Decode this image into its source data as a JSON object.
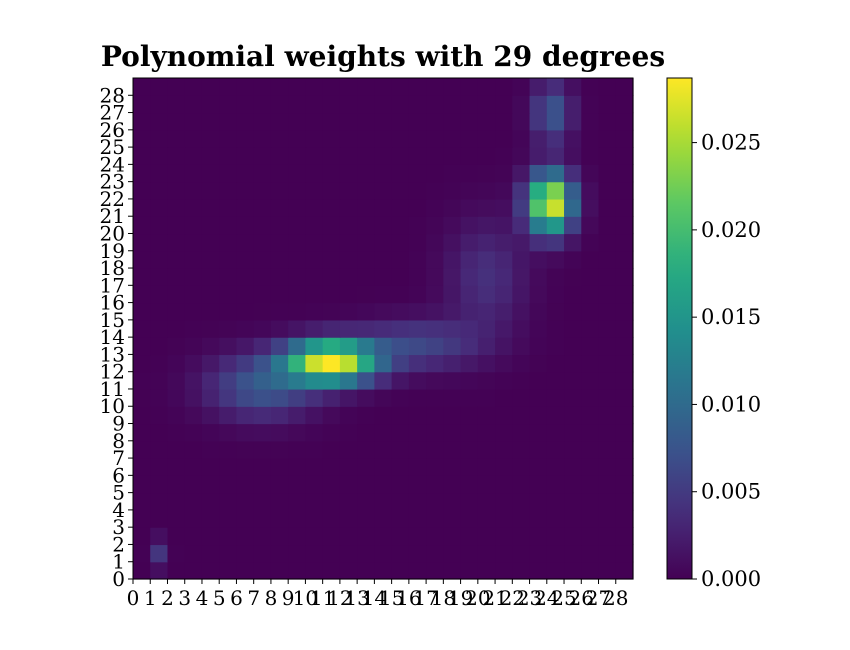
{
  "chart_data": {
    "type": "heatmap",
    "title": "Polynomial weights with 29 degrees",
    "xlabel": "",
    "ylabel": "",
    "x_ticks": [
      "0",
      "1",
      "2",
      "3",
      "4",
      "5",
      "6",
      "7",
      "8",
      "9",
      "10",
      "11",
      "12",
      "13",
      "14",
      "15",
      "16",
      "17",
      "18",
      "19",
      "20",
      "21",
      "22",
      "23",
      "24",
      "25",
      "26",
      "27",
      "28"
    ],
    "y_ticks": [
      "0",
      "1",
      "2",
      "3",
      "4",
      "5",
      "6",
      "7",
      "8",
      "9",
      "10",
      "11",
      "12",
      "13",
      "14",
      "15",
      "16",
      "17",
      "18",
      "19",
      "20",
      "21",
      "22",
      "23",
      "24",
      "25",
      "26",
      "27",
      "28"
    ],
    "colormap": "viridis",
    "vmin": 0.0,
    "vmax": 0.0287,
    "colorbar_ticks": [
      "0.000",
      "0.005",
      "0.010",
      "0.015",
      "0.020",
      "0.025"
    ],
    "colorbar_tick_values": [
      0.0,
      0.005,
      0.01,
      0.015,
      0.02,
      0.025
    ],
    "grid": false,
    "blobs": [
      {
        "cx": 1.5,
        "cy": 1.5,
        "sx": 0.35,
        "sy": 0.6,
        "amp": 0.0045
      },
      {
        "cx": 11.5,
        "cy": 12.6,
        "sx": 1.8,
        "sy": 0.85,
        "amp": 0.0287
      },
      {
        "cx": 7.5,
        "cy": 11.2,
        "sx": 2.2,
        "sy": 1.3,
        "amp": 0.008
      },
      {
        "cx": 16.5,
        "cy": 13.6,
        "sx": 2.5,
        "sy": 1.0,
        "amp": 0.006
      },
      {
        "cx": 20.5,
        "cy": 17.5,
        "sx": 1.6,
        "sy": 2.3,
        "amp": 0.004
      },
      {
        "cx": 24.2,
        "cy": 21.8,
        "sx": 0.9,
        "sy": 1.2,
        "amp": 0.0287
      },
      {
        "cx": 24.3,
        "cy": 27.0,
        "sx": 0.8,
        "sy": 1.2,
        "amp": 0.008
      }
    ]
  }
}
